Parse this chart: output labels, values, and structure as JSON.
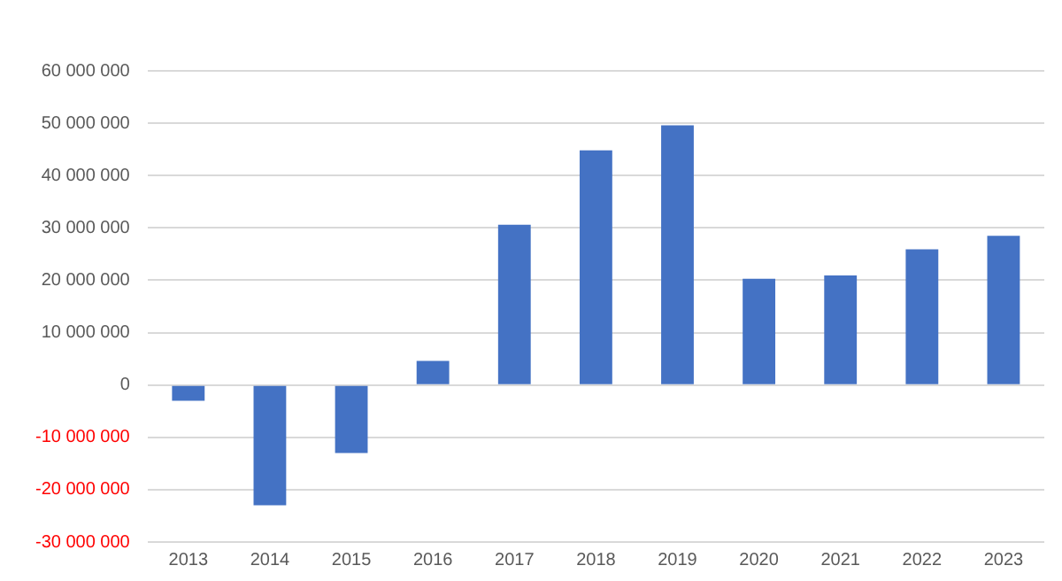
{
  "chart_data": {
    "type": "bar",
    "categories": [
      "2013",
      "2014",
      "2015",
      "2016",
      "2017",
      "2018",
      "2019",
      "2020",
      "2021",
      "2022",
      "2023"
    ],
    "values": [
      -3000000,
      -23000000,
      -13000000,
      4600000,
      30600000,
      44800000,
      49600000,
      20300000,
      20900000,
      25900000,
      28500000
    ],
    "color": "#4472c4",
    "ylim": [
      -30000000,
      60000000
    ],
    "yticks": [
      {
        "value": -30000000,
        "label": "-30 000 000"
      },
      {
        "value": -20000000,
        "label": "-20 000 000"
      },
      {
        "value": -10000000,
        "label": "-10 000 000"
      },
      {
        "value": 0,
        "label": "0"
      },
      {
        "value": 10000000,
        "label": "10 000 000"
      },
      {
        "value": 20000000,
        "label": "20 000 000"
      },
      {
        "value": 30000000,
        "label": "30 000 000"
      },
      {
        "value": 40000000,
        "label": "40 000 000"
      },
      {
        "value": 50000000,
        "label": "50 000 000"
      },
      {
        "value": 60000000,
        "label": "60 000 000"
      }
    ],
    "grid": "y"
  }
}
